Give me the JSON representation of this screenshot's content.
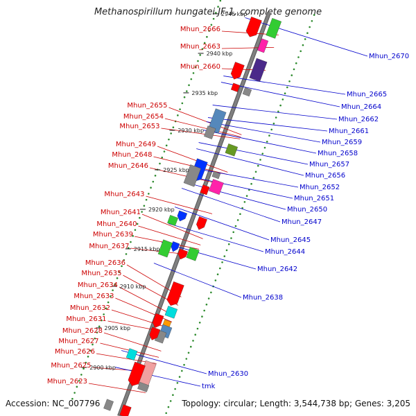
{
  "title": "Methanospirillum hungatei JF-1, complete genome",
  "footer": {
    "accession": "Accession: NC_007796",
    "summary": "Topology: circular; Length: 3,544,738 bp; Genes: 3,205"
  },
  "colors": {
    "forward_label": "#cc0000",
    "reverse_label": "#0000cc",
    "backbone": "#808080",
    "dots": "#2e8b2e"
  },
  "ticks": [
    "2945 kbp",
    "2940 kbp",
    "2935 kbp",
    "2930 kbp",
    "2925 kbp",
    "2920 kbp",
    "2915 kbp",
    "2910 kbp",
    "2905 kbp",
    "2900 kbp"
  ],
  "forward_labels": [
    "Mhun_2666",
    "Mhun_2663",
    "Mhun_2660",
    "Mhun_2655",
    "Mhun_2654",
    "Mhun_2653",
    "Mhun_2649",
    "Mhun_2648",
    "Mhun_2646",
    "Mhun_2643",
    "Mhun_2641",
    "Mhun_2640",
    "Mhun_2639",
    "Mhun_2637",
    "Mhun_2636",
    "Mhun_2635",
    "Mhun_2634",
    "Mhun_2633",
    "Mhun_2632",
    "Mhun_2631",
    "Mhun_2628",
    "Mhun_2627",
    "Mhun_2626",
    "Mhun_2625",
    "Mhun_2623"
  ],
  "reverse_labels": [
    "Mhun_2670",
    "Mhun_2665",
    "Mhun_2664",
    "Mhun_2662",
    "Mhun_2661",
    "Mhun_2659",
    "Mhun_2658",
    "Mhun_2657",
    "Mhun_2656",
    "Mhun_2652",
    "Mhun_2651",
    "Mhun_2650",
    "Mhun_2647",
    "Mhun_2645",
    "Mhun_2644",
    "Mhun_2642",
    "Mhun_2638",
    "Mhun_2630",
    "tmk"
  ]
}
